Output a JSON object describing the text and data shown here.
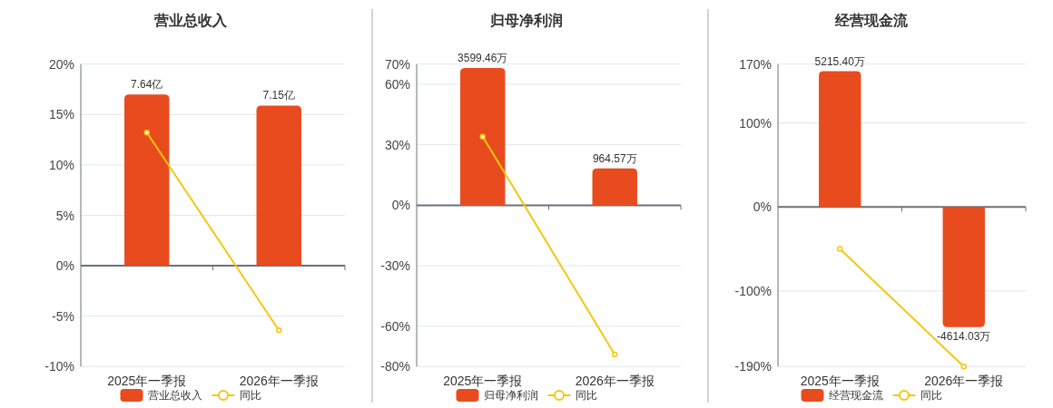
{
  "chart_data": [
    {
      "type": "bar",
      "title": "营业总收入",
      "categories": [
        "2025年一季报",
        "2026年一季报"
      ],
      "series": [
        {
          "name": "营业总收入",
          "axis": "y2",
          "color": "#e84c1e",
          "values": [
            7.64,
            7.15
          ],
          "value_labels": [
            "7.64亿",
            "7.15亿"
          ]
        },
        {
          "name": "同比",
          "type": "line",
          "color": "#f5c70f",
          "marker": "circle",
          "values": [
            13.2,
            -6.4
          ]
        }
      ],
      "ylim": [
        -10,
        20
      ],
      "yticks": [
        {
          "value": -10,
          "label": "-10%"
        },
        {
          "value": -5,
          "label": "-5%"
        },
        {
          "value": 0,
          "label": "0%"
        },
        {
          "value": 5,
          "label": "5%"
        },
        {
          "value": 10,
          "label": "10%"
        },
        {
          "value": 15,
          "label": "15%"
        },
        {
          "value": 20,
          "label": "20%"
        }
      ],
      "y2lim": [
        -4.5,
        9
      ],
      "grid": "y",
      "legend": "bottom"
    },
    {
      "type": "bar",
      "title": "归母净利润",
      "categories": [
        "2025年一季报",
        "2026年一季报"
      ],
      "series": [
        {
          "name": "归母净利润",
          "axis": "y2",
          "color": "#e84c1e",
          "values": [
            3599.46,
            964.57
          ],
          "value_labels": [
            "3599.46万",
            "964.57万"
          ]
        },
        {
          "name": "同比",
          "type": "line",
          "color": "#f5c70f",
          "marker": "circle",
          "values": [
            34,
            -74
          ]
        }
      ],
      "ylim": [
        -80,
        70
      ],
      "yticks": [
        {
          "value": -80,
          "label": "-80%"
        },
        {
          "value": -60,
          "label": "-60%"
        },
        {
          "value": -30,
          "label": "-30%"
        },
        {
          "value": 0,
          "label": "0%"
        },
        {
          "value": 30,
          "label": "30%"
        },
        {
          "value": 60,
          "label": "60%"
        },
        {
          "value": 70,
          "label": "70%"
        }
      ],
      "y2lim": [
        -4229,
        3700
      ],
      "grid": "y",
      "legend": "bottom"
    },
    {
      "type": "bar",
      "title": "经营现金流",
      "categories": [
        "2025年一季报",
        "2026年一季报"
      ],
      "series": [
        {
          "name": "经营现金流",
          "axis": "y2",
          "color": "#e84c1e",
          "values": [
            5215.4,
            -4614.03
          ],
          "value_labels": [
            "5215.40万",
            "-4614.03万"
          ]
        },
        {
          "name": "同比",
          "type": "line",
          "color": "#f5c70f",
          "marker": "circle",
          "values": [
            -50,
            -190
          ]
        }
      ],
      "ylim": [
        -190,
        170
      ],
      "yticks": [
        {
          "value": -190,
          "label": "-190%"
        },
        {
          "value": -100,
          "label": "-100%"
        },
        {
          "value": 0,
          "label": "0%"
        },
        {
          "value": 100,
          "label": "100%"
        },
        {
          "value": 170,
          "label": "170%"
        }
      ],
      "y2lim": [
        -6134,
        5488
      ],
      "grid": "y",
      "legend": "bottom"
    }
  ]
}
